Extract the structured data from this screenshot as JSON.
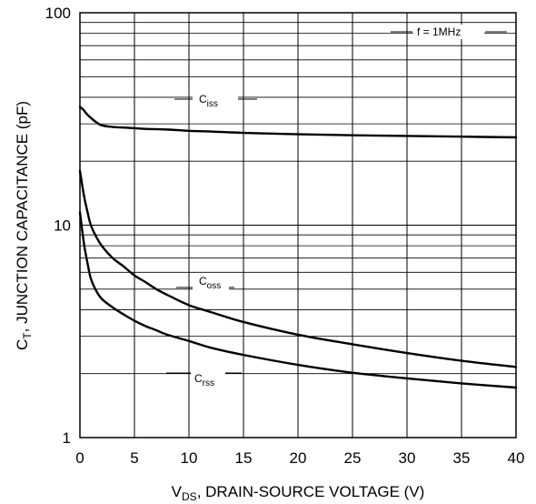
{
  "chart_data": {
    "type": "line",
    "title": "",
    "xlabel": {
      "main": "V",
      "sub": "DS",
      "rest": ", DRAIN-SOURCE VOLTAGE (V)"
    },
    "ylabel": {
      "main": "C",
      "sub": "T",
      "rest": ", JUNCTION CAPACITANCE (pF)"
    },
    "xlim": [
      0,
      40
    ],
    "ylim": [
      1,
      100
    ],
    "yscale": "log",
    "grid": true,
    "xticks": [
      {
        "value": 0,
        "label": "0"
      },
      {
        "value": 5,
        "label": "5"
      },
      {
        "value": 10,
        "label": "10"
      },
      {
        "value": 15,
        "label": "15"
      },
      {
        "value": 20,
        "label": "20"
      },
      {
        "value": 25,
        "label": "25"
      },
      {
        "value": 30,
        "label": "30"
      },
      {
        "value": 35,
        "label": "35"
      },
      {
        "value": 40,
        "label": "40"
      }
    ],
    "yticks": [
      {
        "value": 1,
        "label": "1"
      },
      {
        "value": 10,
        "label": "10"
      },
      {
        "value": 100,
        "label": "100"
      }
    ],
    "annotation": "f = 1MHz",
    "series": [
      {
        "name": {
          "main": "C",
          "sub": "iss"
        },
        "x": [
          0,
          0.3,
          0.6,
          1,
          1.5,
          2,
          3,
          4,
          5,
          6,
          8,
          10,
          12,
          15,
          20,
          25,
          30,
          35,
          40
        ],
        "y": [
          36,
          35,
          33.5,
          32,
          30.5,
          29.5,
          29,
          28.8,
          28.6,
          28.4,
          28.2,
          27.8,
          27.6,
          27.2,
          26.8,
          26.5,
          26.3,
          26.1,
          25.9
        ]
      },
      {
        "name": {
          "main": "C",
          "sub": "oss"
        },
        "x": [
          0,
          0.2,
          0.4,
          0.7,
          1,
          1.5,
          2,
          3,
          4,
          5,
          6,
          7,
          8,
          10,
          12,
          15,
          20,
          25,
          30,
          35,
          40
        ],
        "y": [
          18,
          15.5,
          13.5,
          11.5,
          10,
          8.8,
          8,
          7,
          6.4,
          5.8,
          5.4,
          5.0,
          4.7,
          4.2,
          3.9,
          3.5,
          3.05,
          2.75,
          2.5,
          2.3,
          2.15
        ]
      },
      {
        "name": {
          "main": "C",
          "sub": "rss"
        },
        "x": [
          0,
          0.2,
          0.4,
          0.7,
          1,
          1.5,
          2,
          3,
          4,
          5,
          6,
          7,
          8,
          10,
          12,
          15,
          20,
          25,
          30,
          35,
          40
        ],
        "y": [
          11.5,
          9.5,
          8.0,
          6.6,
          5.6,
          4.9,
          4.5,
          4.1,
          3.8,
          3.55,
          3.35,
          3.2,
          3.05,
          2.85,
          2.65,
          2.45,
          2.2,
          2.02,
          1.9,
          1.8,
          1.72
        ]
      }
    ]
  }
}
